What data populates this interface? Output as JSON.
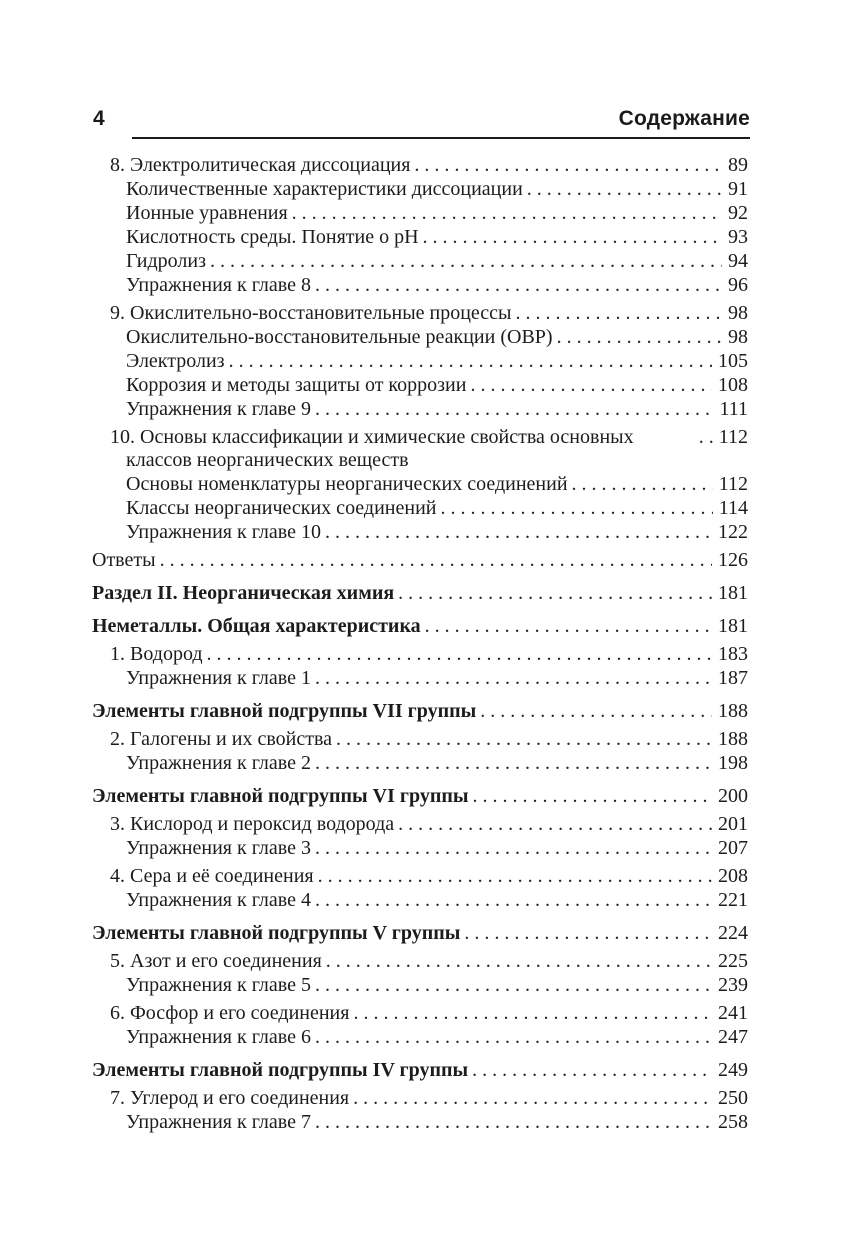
{
  "header": {
    "folio": "4",
    "title": "Содержание"
  },
  "colors": {
    "text": "#1c1c1c",
    "rule": "#1b1b1b",
    "background": "#ffffff"
  },
  "toc": {
    "entries": [
      {
        "level": "chapter",
        "label": "8. Электролитическая диссоциация",
        "page": "89"
      },
      {
        "level": "sub",
        "label": "Количественные характеристики диссоциации",
        "page": "91"
      },
      {
        "level": "sub",
        "label": "Ионные уравнения",
        "page": "92"
      },
      {
        "level": "sub",
        "label": "Кислотность среды. Понятие о pH",
        "page": "93"
      },
      {
        "level": "sub",
        "label": "Гидролиз",
        "page": "94"
      },
      {
        "level": "sub",
        "label": "Упражнения к главе 8",
        "page": "96"
      },
      {
        "level": "chapter",
        "label": "9. Окислительно-восстановительные процессы",
        "page": "98"
      },
      {
        "level": "sub",
        "label": "Окислительно-восстановительные реакции (ОВР)",
        "page": "98"
      },
      {
        "level": "sub",
        "label": "Электролиз",
        "page": "105"
      },
      {
        "level": "sub",
        "label": "Коррозия и методы защиты от коррозии",
        "page": "108"
      },
      {
        "level": "sub",
        "label": "Упражнения к главе 9",
        "page": "111"
      },
      {
        "level": "chapter",
        "label": "10. Основы классификации и химические свойства основных классов неорганических веществ",
        "page": "112"
      },
      {
        "level": "sub",
        "label": "Основы номенклатуры неорганических соединений",
        "page": "112"
      },
      {
        "level": "sub",
        "label": "Классы неорганических соединений",
        "page": "114"
      },
      {
        "level": "sub",
        "label": "Упражнения к главе 10",
        "page": "122"
      },
      {
        "level": "plain",
        "label": "Ответы",
        "page": "126"
      },
      {
        "level": "section",
        "label": "Раздел II. Неорганическая химия",
        "page": "181"
      },
      {
        "level": "section",
        "label": "Неметаллы. Общая характеристика",
        "page": "181"
      },
      {
        "level": "chapter",
        "label": "1. Водород",
        "page": "183"
      },
      {
        "level": "sub",
        "label": "Упражнения к главе 1",
        "page": "187"
      },
      {
        "level": "section",
        "label": "Элементы главной подгруппы VII группы",
        "page": "188"
      },
      {
        "level": "chapter",
        "label": "2. Галогены и их свойства",
        "page": "188"
      },
      {
        "level": "sub",
        "label": "Упражнения к главе 2",
        "page": "198"
      },
      {
        "level": "section",
        "label": "Элементы главной подгруппы VI группы",
        "page": "200"
      },
      {
        "level": "chapter",
        "label": "3. Кислород и пероксид водорода",
        "page": "201"
      },
      {
        "level": "sub",
        "label": "Упражнения к главе 3",
        "page": "207"
      },
      {
        "level": "chapter",
        "label": "4. Сера и её соединения",
        "page": "208"
      },
      {
        "level": "sub",
        "label": "Упражнения к главе 4",
        "page": "221"
      },
      {
        "level": "section",
        "label": "Элементы главной подгруппы V группы",
        "page": "224"
      },
      {
        "level": "chapter",
        "label": "5. Азот и его соединения",
        "page": "225"
      },
      {
        "level": "sub",
        "label": "Упражнения к главе 5",
        "page": "239"
      },
      {
        "level": "chapter",
        "label": "6. Фосфор и его соединения",
        "page": "241"
      },
      {
        "level": "sub",
        "label": "Упражнения к главе 6",
        "page": "247"
      },
      {
        "level": "section",
        "label": "Элементы главной подгруппы IV группы",
        "page": "249"
      },
      {
        "level": "chapter",
        "label": "7. Углерод и его соединения",
        "page": "250"
      },
      {
        "level": "sub",
        "label": "Упражнения к главе 7",
        "page": "258"
      }
    ]
  }
}
